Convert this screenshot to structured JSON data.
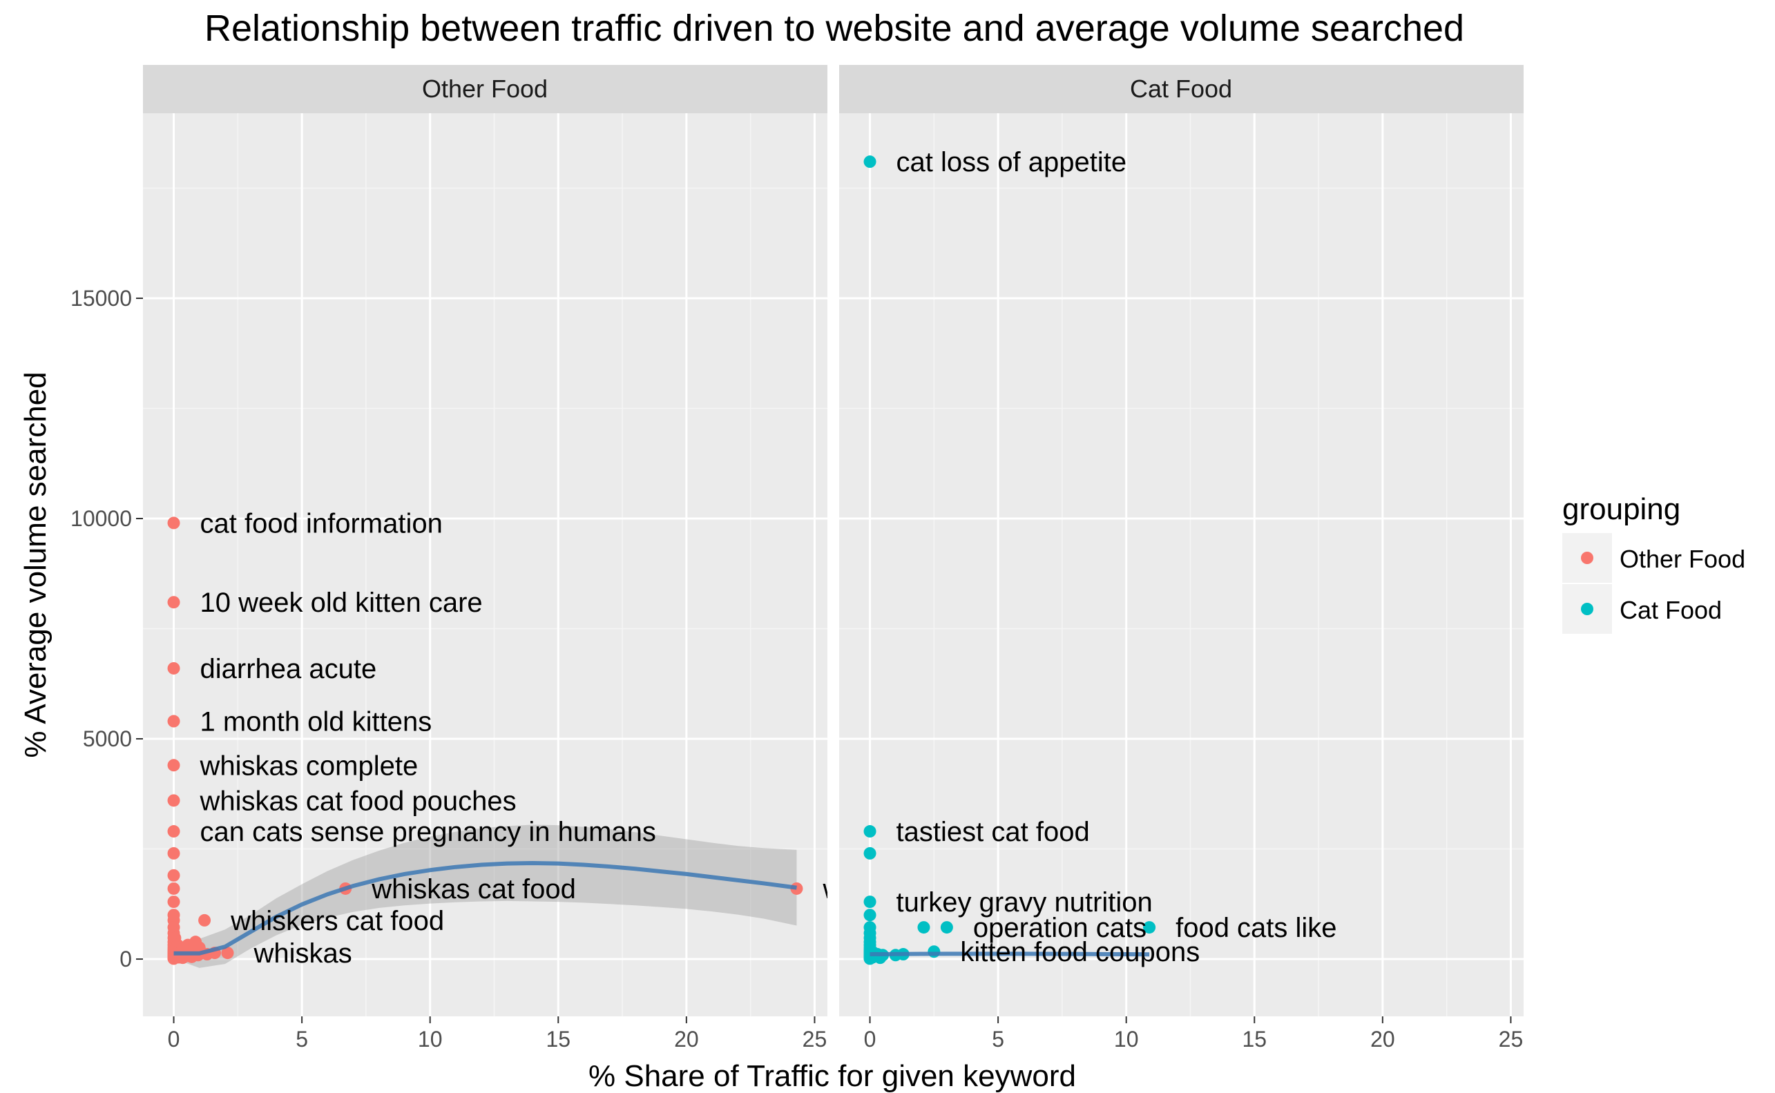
{
  "chart_data": {
    "type": "scatter",
    "title": "Relationship between traffic driven to website and average volume searched",
    "xlabel": "% Share of Traffic for given keyword",
    "ylabel": "% Average volume searched",
    "xlim": [
      -1.2,
      25.5
    ],
    "ylim": [
      -1300,
      19200
    ],
    "x_ticks": [
      0,
      5,
      10,
      15,
      20,
      25
    ],
    "x_tick_labels": [
      "0",
      "5",
      "10",
      "15",
      "20",
      "25"
    ],
    "y_ticks": [
      0,
      5000,
      10000,
      15000
    ],
    "y_tick_labels": [
      "0",
      "5000",
      "10000",
      "15000"
    ],
    "grid": true,
    "legend": {
      "title": "grouping",
      "position": "right",
      "items": [
        {
          "label": "Other Food",
          "color": "#F8766D"
        },
        {
          "label": "Cat Food",
          "color": "#00BFC4"
        }
      ]
    },
    "panels": [
      {
        "strip": "Other Food",
        "color": "#F8766D",
        "points": [
          [
            0,
            9900
          ],
          [
            0,
            8100
          ],
          [
            0,
            6600
          ],
          [
            0,
            5400
          ],
          [
            0,
            4400
          ],
          [
            0,
            3600
          ],
          [
            0,
            2900
          ],
          [
            0,
            2400
          ],
          [
            0,
            1900
          ],
          [
            0,
            1600
          ],
          [
            0,
            1300
          ],
          [
            0,
            1000
          ],
          [
            0,
            880
          ],
          [
            0,
            720
          ],
          [
            0,
            590
          ],
          [
            0,
            480
          ],
          [
            0,
            390
          ],
          [
            0,
            320
          ],
          [
            0,
            260
          ],
          [
            0,
            210
          ],
          [
            0,
            170
          ],
          [
            0,
            140
          ],
          [
            0,
            110
          ],
          [
            0,
            90
          ],
          [
            0,
            70
          ],
          [
            0,
            50
          ],
          [
            0,
            30
          ],
          [
            0,
            20
          ],
          [
            0,
            10
          ],
          [
            0.05,
            480
          ],
          [
            0.08,
            260
          ],
          [
            0.1,
            140
          ],
          [
            0.12,
            70
          ],
          [
            0.15,
            320
          ],
          [
            0.18,
            110
          ],
          [
            0.2,
            40
          ],
          [
            0.22,
            210
          ],
          [
            0.25,
            90
          ],
          [
            0.3,
            170
          ],
          [
            0.35,
            30
          ],
          [
            0.4,
            260
          ],
          [
            0.45,
            140
          ],
          [
            0.5,
            70
          ],
          [
            0.55,
            320
          ],
          [
            0.6,
            210
          ],
          [
            0.65,
            110
          ],
          [
            0.7,
            50
          ],
          [
            0.8,
            260
          ],
          [
            0.85,
            390
          ],
          [
            0.9,
            170
          ],
          [
            0.95,
            90
          ],
          [
            1.0,
            260
          ],
          [
            1.1,
            140
          ],
          [
            1.2,
            880
          ],
          [
            1.3,
            110
          ],
          [
            1.6,
            140
          ],
          [
            2.1,
            140
          ],
          [
            6.7,
            1600
          ],
          [
            24.3,
            1600
          ]
        ],
        "labels": [
          {
            "x": 0,
            "y": 9900,
            "text": "cat food information"
          },
          {
            "x": 0,
            "y": 8100,
            "text": "10 week old kitten care"
          },
          {
            "x": 0,
            "y": 6600,
            "text": "diarrhea acute"
          },
          {
            "x": 0,
            "y": 5400,
            "text": "1 month old kittens"
          },
          {
            "x": 0,
            "y": 4400,
            "text": "whiskas complete"
          },
          {
            "x": 0,
            "y": 3600,
            "text": "whiskas cat food pouches"
          },
          {
            "x": 0,
            "y": 2900,
            "text": "can cats sense pregnancy in humans"
          },
          {
            "x": 6.7,
            "y": 1600,
            "text": "whiskas cat food"
          },
          {
            "x": 1.2,
            "y": 880,
            "text": "whiskers cat food"
          },
          {
            "x": 2.1,
            "y": 140,
            "text": "whiskas"
          },
          {
            "x": 24.3,
            "y": 1600,
            "text": "w"
          }
        ],
        "smooth": {
          "x": [
            0,
            1,
            2,
            3,
            4,
            5,
            6,
            7,
            8,
            9,
            10,
            11,
            12,
            13,
            14,
            15,
            16,
            17,
            18,
            19,
            20,
            21,
            22,
            23,
            24.3
          ],
          "y": [
            130,
            130,
            280,
            620,
            960,
            1240,
            1470,
            1660,
            1810,
            1930,
            2020,
            2090,
            2140,
            2170,
            2180,
            2170,
            2140,
            2100,
            2050,
            1990,
            1930,
            1860,
            1790,
            1720,
            1620
          ],
          "lower": [
            10,
            -200,
            -110,
            240,
            540,
            780,
            940,
            1070,
            1160,
            1220,
            1260,
            1290,
            1310,
            1320,
            1310,
            1300,
            1280,
            1250,
            1220,
            1180,
            1140,
            1080,
            1010,
            920,
            760
          ],
          "upper": [
            260,
            460,
            670,
            1000,
            1380,
            1700,
            2000,
            2250,
            2460,
            2640,
            2780,
            2890,
            2970,
            3020,
            3050,
            3040,
            3000,
            2950,
            2880,
            2800,
            2720,
            2640,
            2570,
            2520,
            2480
          ]
        }
      },
      {
        "strip": "Cat Food",
        "color": "#00BFC4",
        "points": [
          [
            0,
            18100
          ],
          [
            0,
            2900
          ],
          [
            0,
            2400
          ],
          [
            0,
            1300
          ],
          [
            0,
            1000
          ],
          [
            0,
            720
          ],
          [
            0,
            590
          ],
          [
            0,
            480
          ],
          [
            0,
            390
          ],
          [
            0,
            320
          ],
          [
            0,
            260
          ],
          [
            0,
            210
          ],
          [
            0,
            170
          ],
          [
            0,
            140
          ],
          [
            0,
            110
          ],
          [
            0,
            90
          ],
          [
            0,
            70
          ],
          [
            0,
            50
          ],
          [
            0,
            30
          ],
          [
            0,
            20
          ],
          [
            0,
            10
          ],
          [
            0.05,
            90
          ],
          [
            0.1,
            40
          ],
          [
            0.15,
            140
          ],
          [
            0.2,
            70
          ],
          [
            0.3,
            110
          ],
          [
            0.4,
            30
          ],
          [
            0.5,
            90
          ],
          [
            1.0,
            90
          ],
          [
            1.3,
            110
          ],
          [
            2.1,
            720
          ],
          [
            2.5,
            170
          ],
          [
            3.0,
            720
          ],
          [
            10.9,
            720
          ]
        ],
        "labels": [
          {
            "x": 0,
            "y": 18100,
            "text": "cat loss of appetite"
          },
          {
            "x": 0,
            "y": 2900,
            "text": "tastiest cat food"
          },
          {
            "x": 0,
            "y": 1300,
            "text": "turkey gravy nutrition"
          },
          {
            "x": 3.0,
            "y": 720,
            "text": "operation cats"
          },
          {
            "x": 10.9,
            "y": 720,
            "text": "food cats like"
          },
          {
            "x": 2.5,
            "y": 170,
            "text": "kitten food coupons"
          }
        ],
        "smooth": {
          "x": [
            0,
            1,
            2,
            3,
            4,
            5,
            6,
            7,
            8,
            9,
            10,
            10.9
          ],
          "y": [
            110,
            115,
            118,
            120,
            121,
            121,
            120,
            118,
            116,
            113,
            110,
            107
          ],
          "lower": [],
          "upper": []
        }
      }
    ]
  }
}
